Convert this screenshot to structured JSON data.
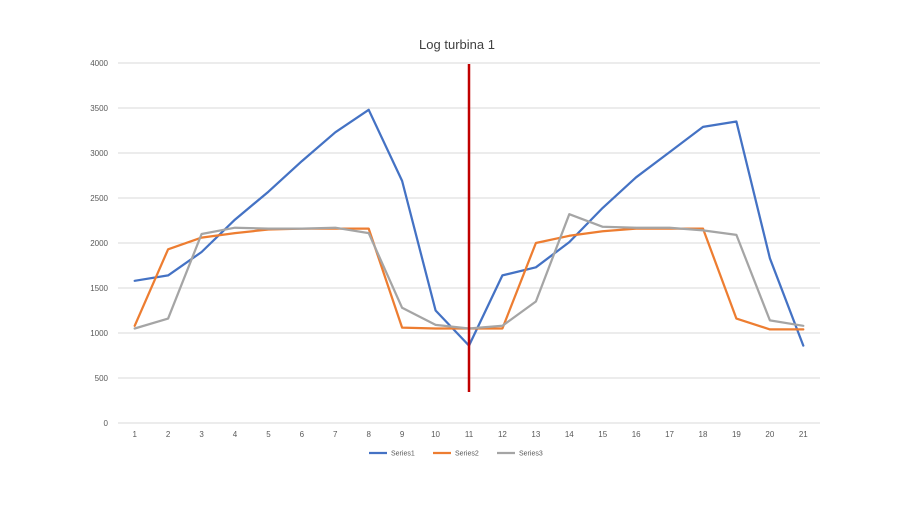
{
  "chart_data": {
    "type": "line",
    "title": "Log turbina 1",
    "xlabel": "",
    "ylabel": "",
    "ylim": [
      0,
      4000
    ],
    "yticks": [
      0,
      500,
      1000,
      1500,
      2000,
      2500,
      3000,
      3500,
      4000
    ],
    "categories": [
      "1",
      "2",
      "3",
      "4",
      "5",
      "6",
      "7",
      "8",
      "9",
      "10",
      "11",
      "12",
      "13",
      "14",
      "15",
      "16",
      "17",
      "18",
      "19",
      "20",
      "21"
    ],
    "series": [
      {
        "name": "Series1",
        "color": "#4472c4",
        "values": [
          1580,
          1640,
          1900,
          2260,
          2570,
          2910,
          3230,
          3480,
          2690,
          1250,
          860,
          1640,
          1730,
          2010,
          2390,
          2730,
          3010,
          3290,
          3350,
          1830,
          860
        ]
      },
      {
        "name": "Series2",
        "color": "#ed7d31",
        "values": [
          1080,
          1930,
          2060,
          2110,
          2150,
          2160,
          2160,
          2160,
          1060,
          1050,
          1050,
          1050,
          2000,
          2080,
          2130,
          2160,
          2160,
          2160,
          1160,
          1040,
          1040
        ]
      },
      {
        "name": "Series3",
        "color": "#a5a5a5",
        "values": [
          1050,
          1160,
          2100,
          2170,
          2160,
          2160,
          2170,
          2110,
          1280,
          1090,
          1050,
          1080,
          1350,
          2320,
          2180,
          2170,
          2170,
          2140,
          2090,
          1140,
          1080
        ]
      }
    ],
    "annotations": [
      {
        "type": "vertical-line",
        "x": 11,
        "color": "#c00000"
      }
    ],
    "legend": "bottom",
    "grid": true
  }
}
